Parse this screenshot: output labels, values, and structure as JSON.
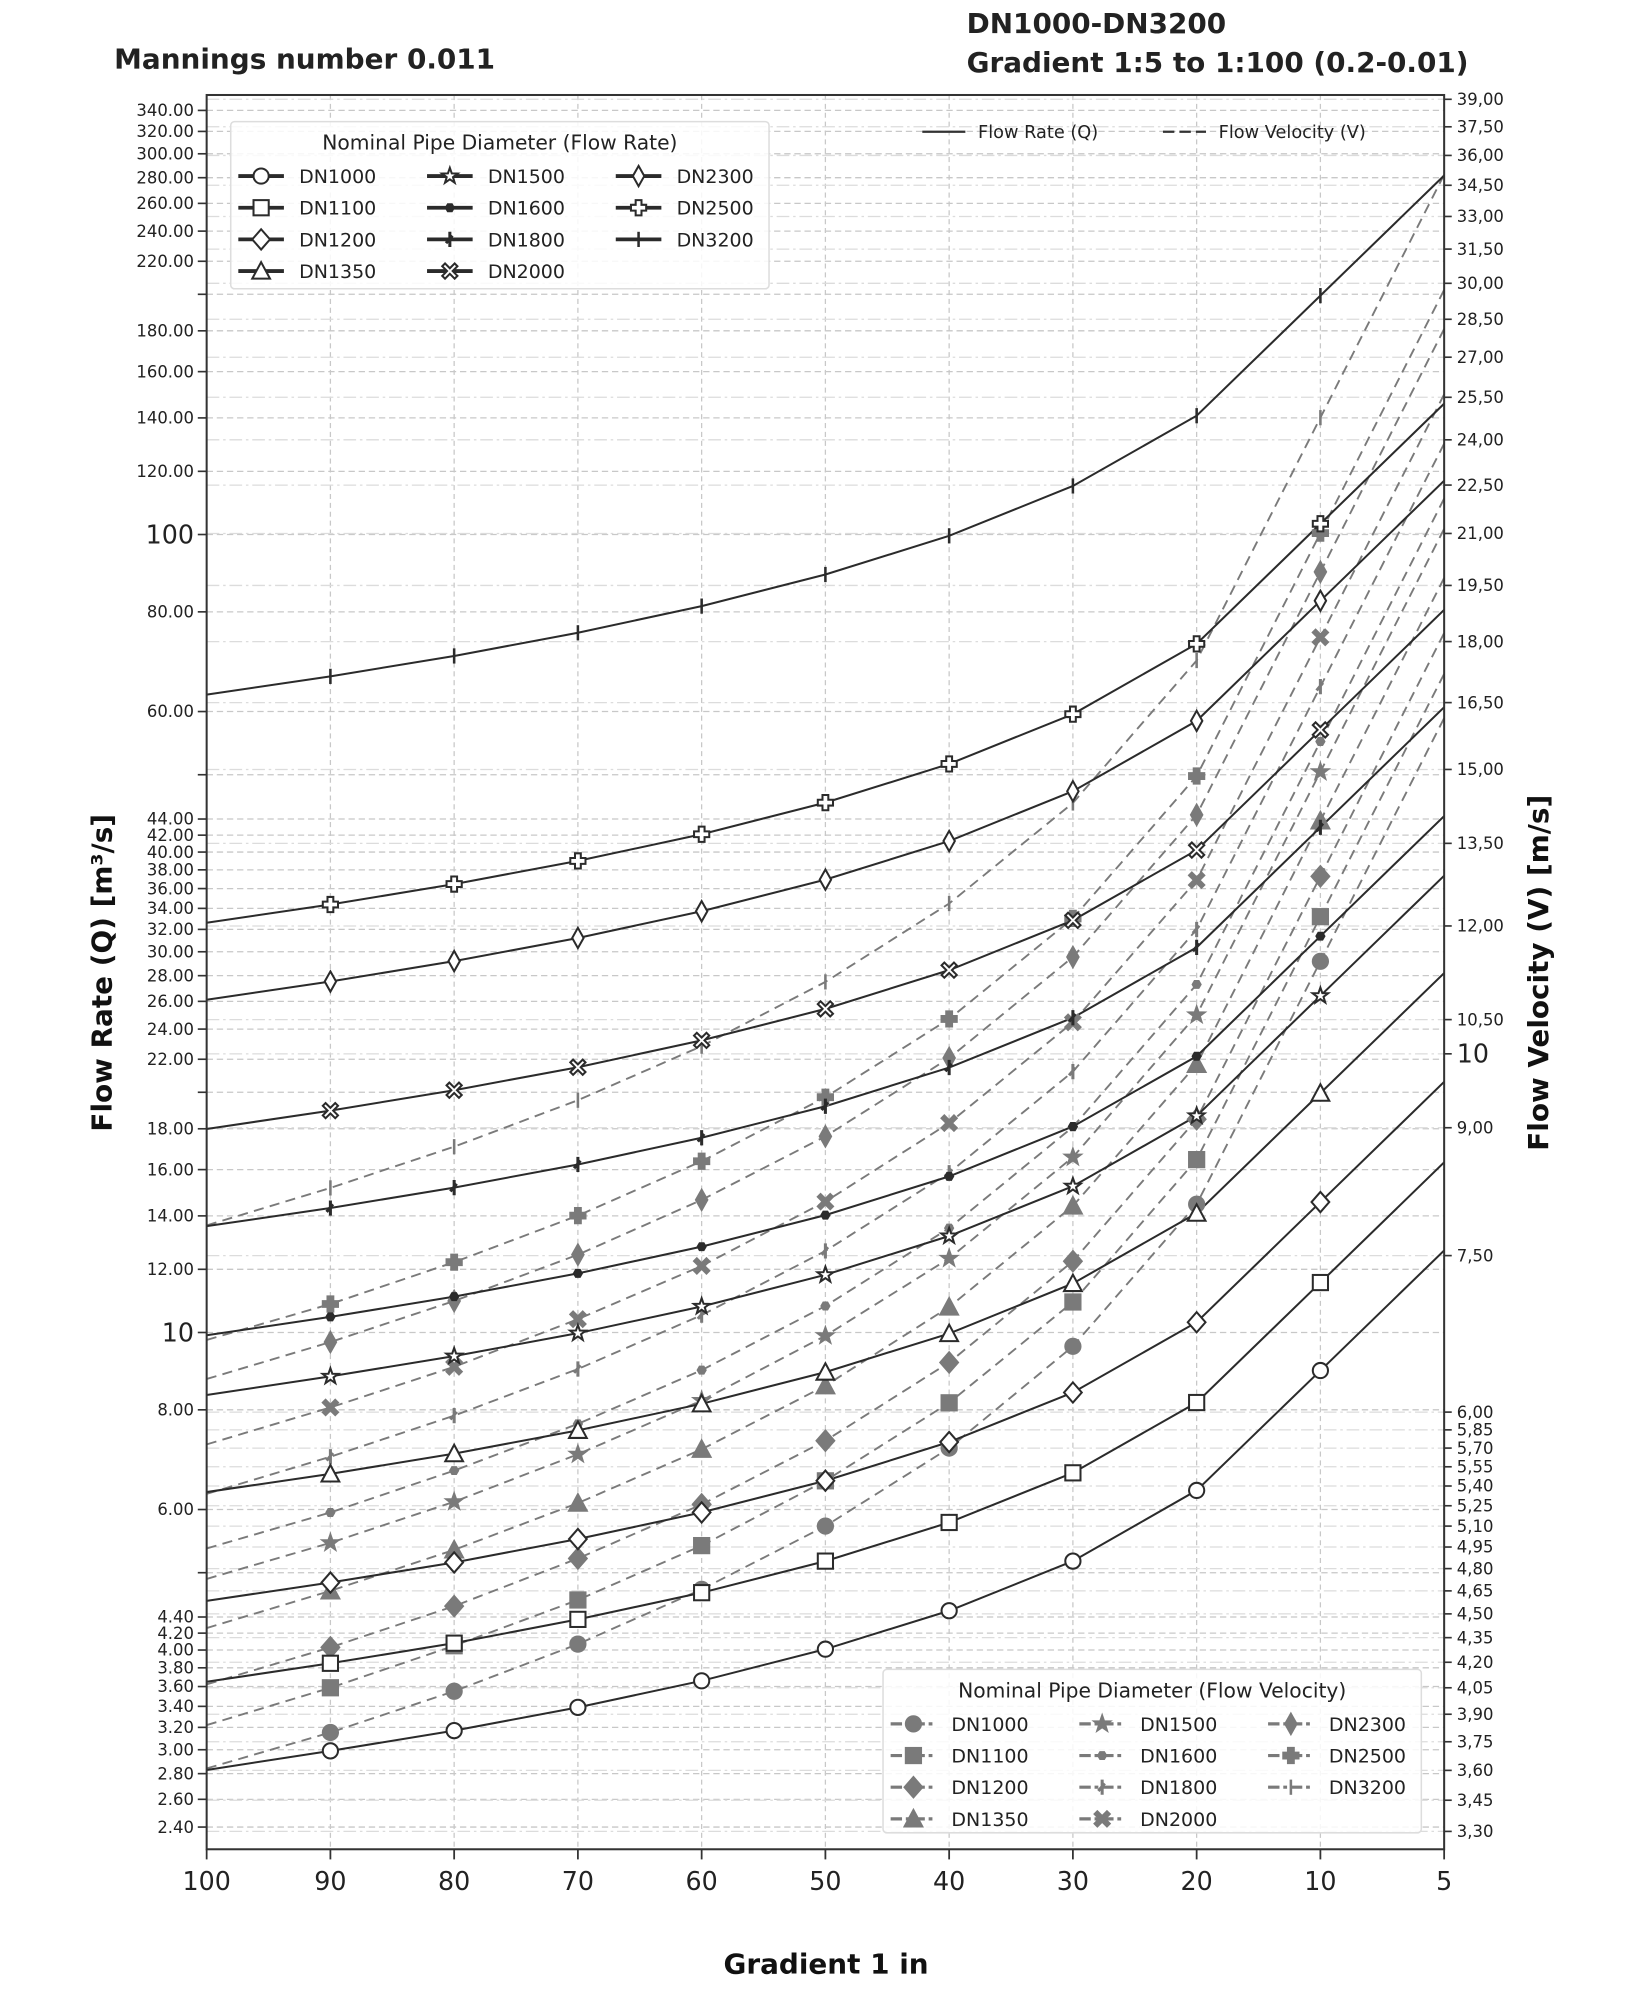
{
  "titles": {
    "left": "Mannings number 0.011",
    "right_line1": "DN1000-DN3200",
    "right_line2": "Gradient 1:5 to 1:100 (0.2-0.01)"
  },
  "chart_data": {
    "type": "line",
    "xlabel": "Gradient 1 in",
    "ylabel_left": "Flow Rate (Q) [m³/s]",
    "ylabel_right": "Flow Velocity (V) [m/s]",
    "x": [
      100,
      90,
      80,
      70,
      60,
      50,
      40,
      30,
      20,
      10,
      5
    ],
    "x_tick_labels": [
      "100",
      "90",
      "80",
      "70",
      "60",
      "50",
      "40",
      "30",
      "20",
      "10",
      "5"
    ],
    "y_left_scale": "log",
    "y_left_range": [
      2.25,
      355
    ],
    "y_right_scale": "log",
    "y_right_range": [
      3.22,
      39.3
    ],
    "grid": true,
    "line_style_legend": {
      "placement": "top-right",
      "entries": [
        {
          "label": "Flow Rate (Q)",
          "style": "solid"
        },
        {
          "label": "Flow Velocity (V)",
          "style": "dashed"
        }
      ]
    },
    "legend_flow_rate": {
      "title": "Nominal Pipe Diameter (Flow Rate)",
      "placement": "top-left"
    },
    "legend_flow_velocity": {
      "title": "Nominal Pipe Diameter (Flow Velocity)",
      "placement": "bottom-right"
    },
    "colors": {
      "flow_rate": "#2b2b2b",
      "flow_velocity": "#7a7a7a",
      "grid": "#c8c8c8"
    },
    "y_left_ticks": [
      {
        "value": 340,
        "label": "340.00"
      },
      {
        "value": 320,
        "label": "320.00"
      },
      {
        "value": 300,
        "label": "300.00"
      },
      {
        "value": 280,
        "label": "280.00"
      },
      {
        "value": 260,
        "label": "260.00"
      },
      {
        "value": 240,
        "label": "240.00"
      },
      {
        "value": 220,
        "label": "220.00"
      },
      {
        "value": 200,
        "label": ""
      },
      {
        "value": 180,
        "label": "180.00"
      },
      {
        "value": 160,
        "label": "160.00"
      },
      {
        "value": 140,
        "label": "140.00"
      },
      {
        "value": 120,
        "label": "120.00"
      },
      {
        "value": 100,
        "label": "100",
        "major": true
      },
      {
        "value": 80,
        "label": "80.00"
      },
      {
        "value": 60,
        "label": "60.00"
      },
      {
        "value": 50,
        "label": ""
      },
      {
        "value": 44,
        "label": "44.00"
      },
      {
        "value": 42,
        "label": "42.00"
      },
      {
        "value": 40,
        "label": "40.00"
      },
      {
        "value": 38,
        "label": "38.00"
      },
      {
        "value": 36,
        "label": "36.00"
      },
      {
        "value": 34,
        "label": "34.00"
      },
      {
        "value": 32,
        "label": "32.00"
      },
      {
        "value": 30,
        "label": "30.00"
      },
      {
        "value": 28,
        "label": "28.00"
      },
      {
        "value": 26,
        "label": "26.00"
      },
      {
        "value": 24,
        "label": "24.00"
      },
      {
        "value": 22,
        "label": "22.00"
      },
      {
        "value": 20,
        "label": ""
      },
      {
        "value": 18,
        "label": "18.00"
      },
      {
        "value": 16,
        "label": "16.00"
      },
      {
        "value": 14,
        "label": "14.00"
      },
      {
        "value": 12,
        "label": "12.00"
      },
      {
        "value": 10,
        "label": "10",
        "major": true
      },
      {
        "value": 8,
        "label": "8.00"
      },
      {
        "value": 6,
        "label": "6.00"
      },
      {
        "value": 5,
        "label": ""
      },
      {
        "value": 4.4,
        "label": "4.40"
      },
      {
        "value": 4.2,
        "label": "4.20"
      },
      {
        "value": 4.0,
        "label": "4.00"
      },
      {
        "value": 3.8,
        "label": "3.80"
      },
      {
        "value": 3.6,
        "label": "3.60"
      },
      {
        "value": 3.4,
        "label": "3.40"
      },
      {
        "value": 3.2,
        "label": "3.20"
      },
      {
        "value": 3.0,
        "label": "3.00"
      },
      {
        "value": 2.8,
        "label": "2.80"
      },
      {
        "value": 2.6,
        "label": "2.60"
      },
      {
        "value": 2.4,
        "label": "2.40"
      }
    ],
    "y_right_ticks": [
      {
        "value": 39,
        "label": "39,00"
      },
      {
        "value": 37.5,
        "label": "37,50"
      },
      {
        "value": 36,
        "label": "36,00"
      },
      {
        "value": 34.5,
        "label": "34,50"
      },
      {
        "value": 33,
        "label": "33,00"
      },
      {
        "value": 31.5,
        "label": "31,50"
      },
      {
        "value": 30,
        "label": "30,00"
      },
      {
        "value": 28.5,
        "label": "28,50"
      },
      {
        "value": 27,
        "label": "27,00"
      },
      {
        "value": 25.5,
        "label": "25,50"
      },
      {
        "value": 24,
        "label": "24,00"
      },
      {
        "value": 22.5,
        "label": "22,50"
      },
      {
        "value": 21,
        "label": "21,00"
      },
      {
        "value": 19.5,
        "label": "19,50"
      },
      {
        "value": 18,
        "label": "18,00"
      },
      {
        "value": 16.5,
        "label": "16,50"
      },
      {
        "value": 15,
        "label": "15,00"
      },
      {
        "value": 13.5,
        "label": "13,50"
      },
      {
        "value": 12,
        "label": "12,00"
      },
      {
        "value": 10.5,
        "label": "10,50"
      },
      {
        "value": 10,
        "label": "10",
        "major": true
      },
      {
        "value": 9,
        "label": "9,00"
      },
      {
        "value": 7.5,
        "label": "7,50"
      },
      {
        "value": 6,
        "label": "6,00"
      },
      {
        "value": 5.85,
        "label": "5,85"
      },
      {
        "value": 5.7,
        "label": "5,70"
      },
      {
        "value": 5.55,
        "label": "5,55"
      },
      {
        "value": 5.4,
        "label": "5,40"
      },
      {
        "value": 5.25,
        "label": "5,25"
      },
      {
        "value": 5.1,
        "label": "5,10"
      },
      {
        "value": 4.95,
        "label": "4,95"
      },
      {
        "value": 4.8,
        "label": "4,80"
      },
      {
        "value": 4.65,
        "label": "4,65"
      },
      {
        "value": 4.5,
        "label": "4,50"
      },
      {
        "value": 4.35,
        "label": "4,35"
      },
      {
        "value": 4.2,
        "label": "4,20"
      },
      {
        "value": 4.05,
        "label": "4,05"
      },
      {
        "value": 3.9,
        "label": "3,90"
      },
      {
        "value": 3.75,
        "label": "3,75"
      },
      {
        "value": 3.6,
        "label": "3,60"
      },
      {
        "value": 3.45,
        "label": "3,45"
      },
      {
        "value": 3.3,
        "label": "3,30"
      }
    ],
    "flow_rate_series": [
      {
        "name": "DN1000",
        "marker": "circle",
        "values": [
          2.83,
          2.99,
          3.17,
          3.39,
          3.66,
          4.01,
          4.48,
          5.17,
          6.34,
          8.96,
          12.67
        ]
      },
      {
        "name": "DN1100",
        "marker": "square",
        "values": [
          3.65,
          3.85,
          4.08,
          4.37,
          4.72,
          5.17,
          5.78,
          6.67,
          8.17,
          11.55,
          16.34
        ]
      },
      {
        "name": "DN1200",
        "marker": "diamond",
        "values": [
          4.61,
          4.86,
          5.15,
          5.51,
          5.95,
          6.52,
          7.29,
          8.41,
          10.3,
          14.57,
          20.61
        ]
      },
      {
        "name": "DN1350",
        "marker": "triangle",
        "values": [
          6.31,
          6.65,
          7.05,
          7.54,
          8.14,
          8.92,
          9.97,
          11.52,
          14.11,
          19.95,
          28.21
        ]
      },
      {
        "name": "DN1500",
        "marker": "star",
        "values": [
          8.35,
          8.81,
          9.34,
          9.98,
          10.78,
          11.81,
          13.21,
          15.25,
          18.68,
          26.42,
          37.36
        ]
      },
      {
        "name": "DN1600",
        "marker": "hexagon",
        "values": [
          9.92,
          10.46,
          11.09,
          11.86,
          12.81,
          14.03,
          15.69,
          18.12,
          22.19,
          31.38,
          44.38
        ]
      },
      {
        "name": "DN1800",
        "marker": "tri",
        "values": [
          13.59,
          14.32,
          15.19,
          16.24,
          17.54,
          19.21,
          21.48,
          24.8,
          30.38,
          42.96,
          60.75
        ]
      },
      {
        "name": "DN2000",
        "marker": "xfilled",
        "values": [
          17.99,
          18.97,
          20.12,
          21.5,
          23.23,
          25.44,
          28.45,
          32.85,
          40.23,
          56.9,
          80.46
        ]
      },
      {
        "name": "DN2300",
        "marker": "thin_diamond",
        "values": [
          26.12,
          27.53,
          29.2,
          31.22,
          33.72,
          36.94,
          41.29,
          47.68,
          58.4,
          82.59,
          116.8
        ]
      },
      {
        "name": "DN2500",
        "marker": "plus_filled",
        "values": [
          32.62,
          34.38,
          36.47,
          38.99,
          42.11,
          46.13,
          51.58,
          59.55,
          72.94,
          103.15,
          145.88
        ]
      },
      {
        "name": "DN3200",
        "marker": "vline",
        "values": [
          63.01,
          66.41,
          70.44,
          75.31,
          81.34,
          89.1,
          99.62,
          115.03,
          140.89,
          199.24,
          281.77
        ]
      }
    ],
    "flow_velocity_series": [
      {
        "name": "DN1000",
        "marker": "circle",
        "values": [
          3.61,
          3.8,
          4.03,
          4.31,
          4.66,
          5.1,
          5.7,
          6.59,
          8.07,
          11.41,
          16.14
        ]
      },
      {
        "name": "DN1100",
        "marker": "square",
        "values": [
          3.84,
          4.05,
          4.3,
          4.59,
          4.96,
          5.44,
          6.08,
          7.02,
          8.6,
          12.16,
          17.19
        ]
      },
      {
        "name": "DN1200",
        "marker": "diamond",
        "values": [
          4.07,
          4.29,
          4.55,
          4.87,
          5.26,
          5.76,
          6.44,
          7.44,
          9.11,
          12.88,
          18.22
        ]
      },
      {
        "name": "DN1350",
        "marker": "triangle",
        "values": [
          4.41,
          4.65,
          4.93,
          5.27,
          5.69,
          6.23,
          6.97,
          8.05,
          9.85,
          13.94,
          19.71
        ]
      },
      {
        "name": "DN1500",
        "marker": "star",
        "values": [
          4.73,
          4.98,
          5.28,
          5.65,
          6.1,
          6.69,
          7.47,
          8.63,
          10.57,
          14.95,
          21.14
        ]
      },
      {
        "name": "DN1600",
        "marker": "hexagon",
        "values": [
          4.94,
          5.2,
          5.52,
          5.9,
          6.37,
          6.98,
          7.8,
          9.01,
          11.04,
          15.61,
          22.07
        ]
      },
      {
        "name": "DN1800",
        "marker": "tri",
        "values": [
          5.34,
          5.63,
          5.97,
          6.38,
          6.89,
          7.55,
          8.44,
          9.75,
          11.94,
          16.88,
          23.87
        ]
      },
      {
        "name": "DN2000",
        "marker": "xfilled",
        "values": [
          5.73,
          6.04,
          6.4,
          6.85,
          7.39,
          8.1,
          9.06,
          10.46,
          12.81,
          18.11,
          25.61
        ]
      },
      {
        "name": "DN2300",
        "marker": "thin_diamond",
        "values": [
          6.29,
          6.63,
          7.03,
          7.51,
          8.12,
          8.89,
          9.94,
          11.48,
          14.06,
          19.88,
          28.11
        ]
      },
      {
        "name": "DN2500",
        "marker": "plus_filled",
        "values": [
          6.65,
          7.0,
          7.43,
          7.94,
          8.58,
          9.4,
          10.51,
          12.13,
          14.86,
          21.01,
          29.72
        ]
      },
      {
        "name": "DN3200",
        "marker": "vline",
        "values": [
          7.83,
          8.26,
          8.76,
          9.36,
          10.11,
          11.08,
          12.39,
          14.3,
          17.52,
          24.77,
          35.03
        ]
      }
    ]
  }
}
